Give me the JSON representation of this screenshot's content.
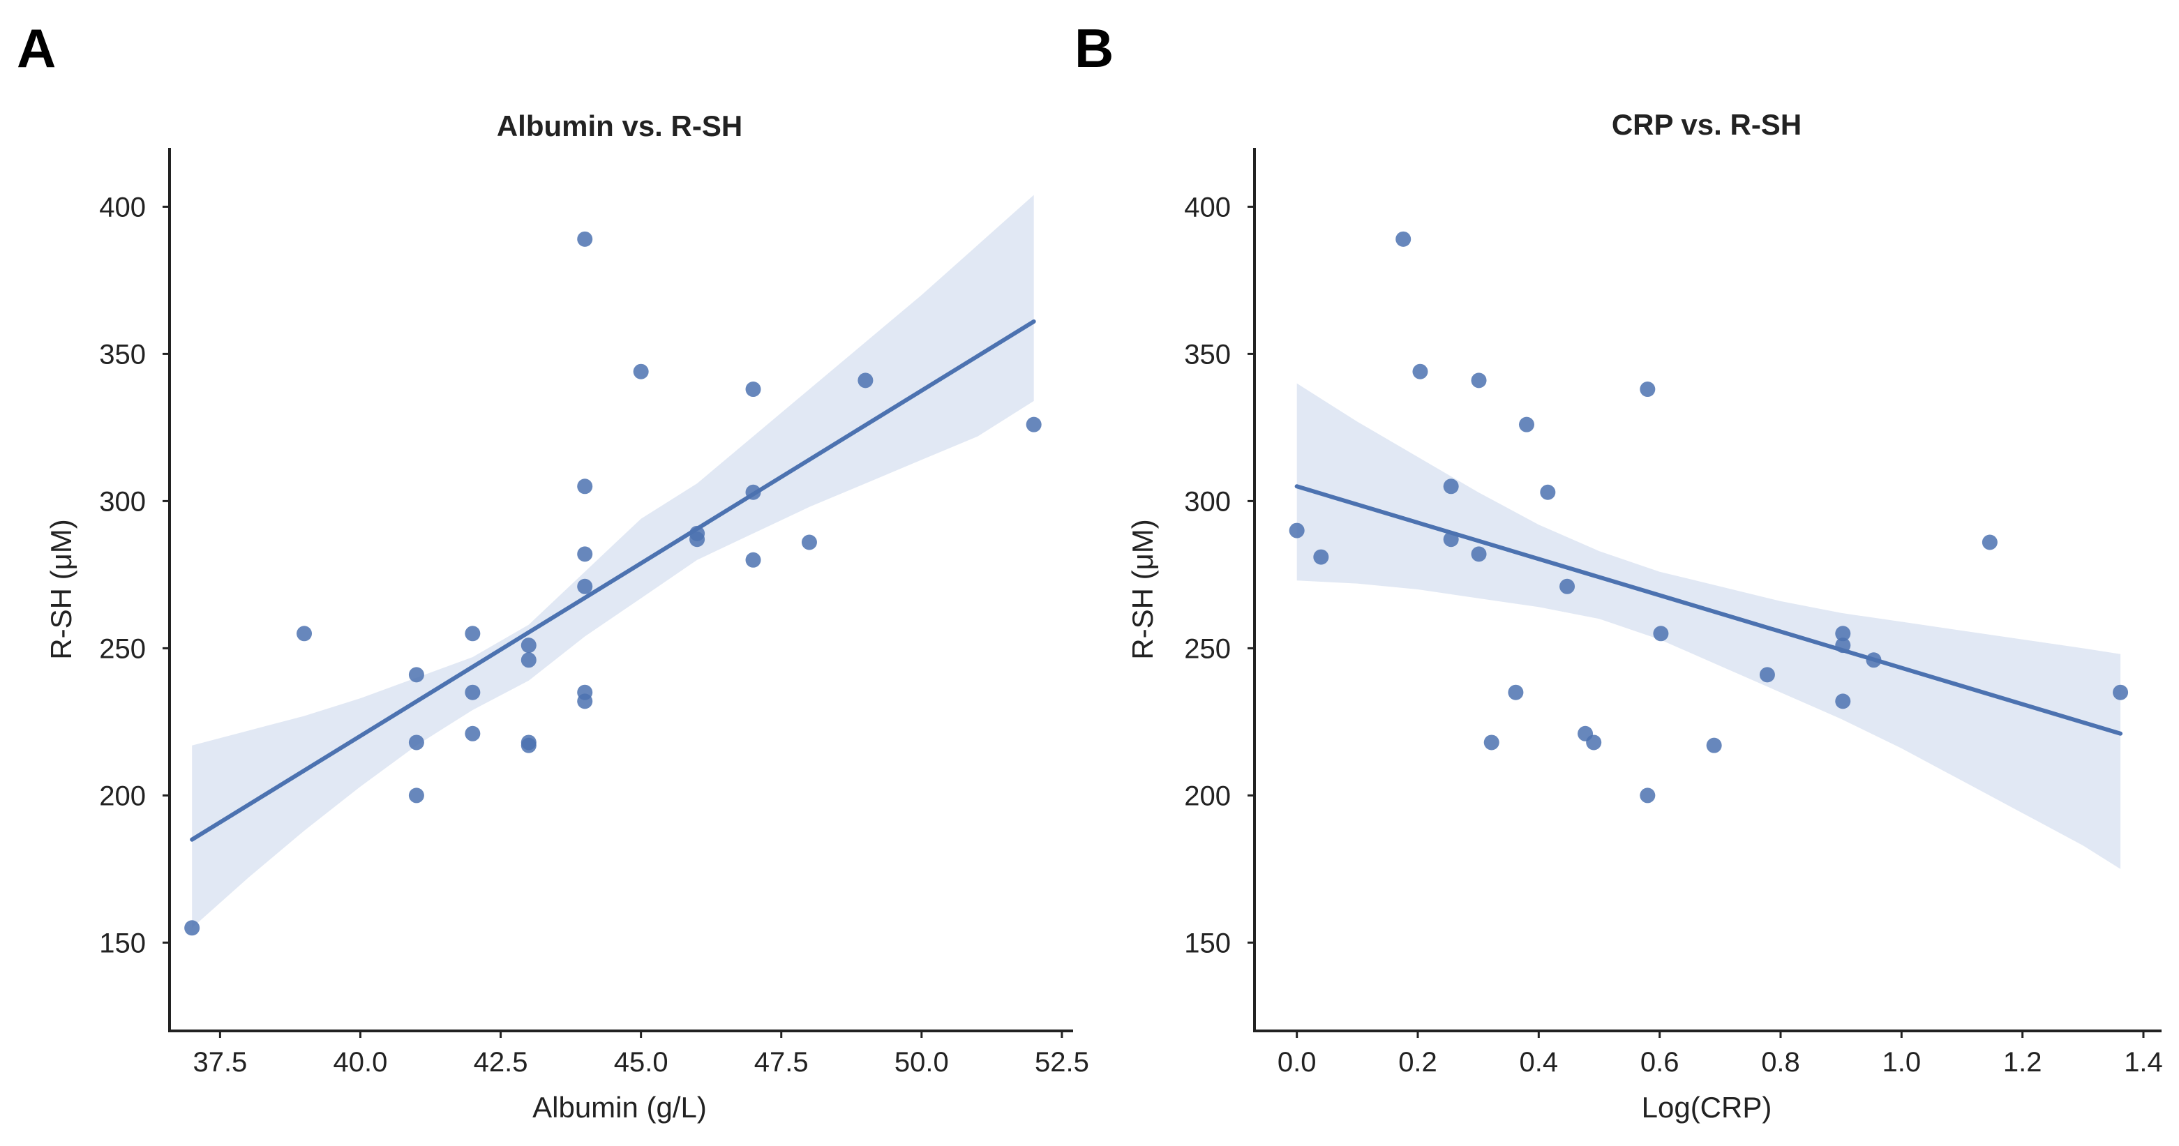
{
  "chart_data": [
    {
      "panel": "A",
      "type": "scatter",
      "title": "Albumin vs. R-SH",
      "xlabel": "Albumin (g/L)",
      "ylabel": "R-SH (μM)",
      "xlim": [
        36.6,
        52.7
      ],
      "ylim": [
        120,
        420
      ],
      "xticks": [
        "37.5",
        "40.0",
        "42.5",
        "45.0",
        "47.5",
        "50.0",
        "52.5"
      ],
      "xtick_values": [
        37.5,
        40.0,
        42.5,
        45.0,
        47.5,
        50.0,
        52.5
      ],
      "yticks": [
        "150",
        "200",
        "250",
        "300",
        "350",
        "400"
      ],
      "ytick_values": [
        150,
        200,
        250,
        300,
        350,
        400
      ],
      "points": [
        [
          37,
          155
        ],
        [
          39,
          255
        ],
        [
          41,
          241
        ],
        [
          41,
          218
        ],
        [
          41,
          200
        ],
        [
          42,
          255
        ],
        [
          42,
          235
        ],
        [
          42,
          221
        ],
        [
          43,
          251
        ],
        [
          43,
          246
        ],
        [
          43,
          218
        ],
        [
          43,
          217
        ],
        [
          44,
          389
        ],
        [
          44,
          305
        ],
        [
          44,
          282
        ],
        [
          44,
          271
        ],
        [
          44,
          235
        ],
        [
          44,
          232
        ],
        [
          45,
          344
        ],
        [
          46,
          289
        ],
        [
          46,
          287
        ],
        [
          47,
          338
        ],
        [
          47,
          303
        ],
        [
          47,
          280
        ],
        [
          48,
          286
        ],
        [
          49,
          341
        ],
        [
          52,
          326
        ]
      ],
      "regression": {
        "x": [
          37,
          52
        ],
        "y": [
          185,
          361
        ]
      },
      "ci_band": {
        "x": [
          37,
          38,
          39,
          40,
          41,
          42,
          43,
          44,
          45,
          46,
          47,
          48,
          49,
          50,
          51,
          52
        ],
        "lower": [
          155,
          172,
          188,
          203,
          217,
          229,
          239,
          254,
          267,
          280,
          289,
          298,
          306,
          314,
          322,
          334
        ],
        "upper": [
          217,
          222,
          227,
          233,
          240,
          247,
          258,
          276,
          294,
          306,
          322,
          338,
          354,
          370,
          387,
          404
        ]
      },
      "colors": {
        "point": "#4C72B0",
        "line": "#4C72B0",
        "band": "#E1E8F4"
      }
    },
    {
      "panel": "B",
      "type": "scatter",
      "title": "CRP vs. R-SH",
      "xlabel": "Log(CRP)",
      "ylabel": "R-SH (μM)",
      "xlim": [
        -0.07,
        1.43
      ],
      "ylim": [
        120,
        420
      ],
      "xticks": [
        "0.0",
        "0.2",
        "0.4",
        "0.6",
        "0.8",
        "1.0",
        "1.2",
        "1.4"
      ],
      "xtick_values": [
        0.0,
        0.2,
        0.4,
        0.6,
        0.8,
        1.0,
        1.2,
        1.4
      ],
      "yticks": [
        "150",
        "200",
        "250",
        "300",
        "350",
        "400"
      ],
      "ytick_values": [
        150,
        200,
        250,
        300,
        350,
        400
      ],
      "points": [
        [
          0.0,
          290
        ],
        [
          0.04,
          281
        ],
        [
          0.176,
          389
        ],
        [
          0.204,
          344
        ],
        [
          0.255,
          305
        ],
        [
          0.255,
          287
        ],
        [
          0.301,
          341
        ],
        [
          0.301,
          282
        ],
        [
          0.322,
          218
        ],
        [
          0.362,
          235
        ],
        [
          0.38,
          326
        ],
        [
          0.415,
          303
        ],
        [
          0.447,
          271
        ],
        [
          0.477,
          221
        ],
        [
          0.491,
          218
        ],
        [
          0.58,
          338
        ],
        [
          0.58,
          200
        ],
        [
          0.602,
          255
        ],
        [
          0.69,
          217
        ],
        [
          0.778,
          241
        ],
        [
          0.903,
          255
        ],
        [
          0.903,
          251
        ],
        [
          0.903,
          232
        ],
        [
          0.954,
          246
        ],
        [
          1.146,
          286
        ],
        [
          1.362,
          235
        ]
      ],
      "regression": {
        "x": [
          0.0,
          1.362
        ],
        "y": [
          305,
          221
        ]
      },
      "ci_band": {
        "x": [
          0.0,
          0.1,
          0.2,
          0.3,
          0.4,
          0.5,
          0.6,
          0.7,
          0.8,
          0.9,
          1.0,
          1.1,
          1.2,
          1.3,
          1.362
        ],
        "lower": [
          273,
          272,
          270,
          267,
          264,
          260,
          253,
          244,
          235,
          226,
          216,
          205,
          194,
          183,
          175
        ],
        "upper": [
          340,
          327,
          315,
          303,
          292,
          283,
          276,
          271,
          266,
          262,
          259,
          256,
          253,
          250,
          248
        ]
      },
      "colors": {
        "point": "#4C72B0",
        "line": "#4C72B0",
        "band": "#E1E8F4"
      }
    }
  ]
}
